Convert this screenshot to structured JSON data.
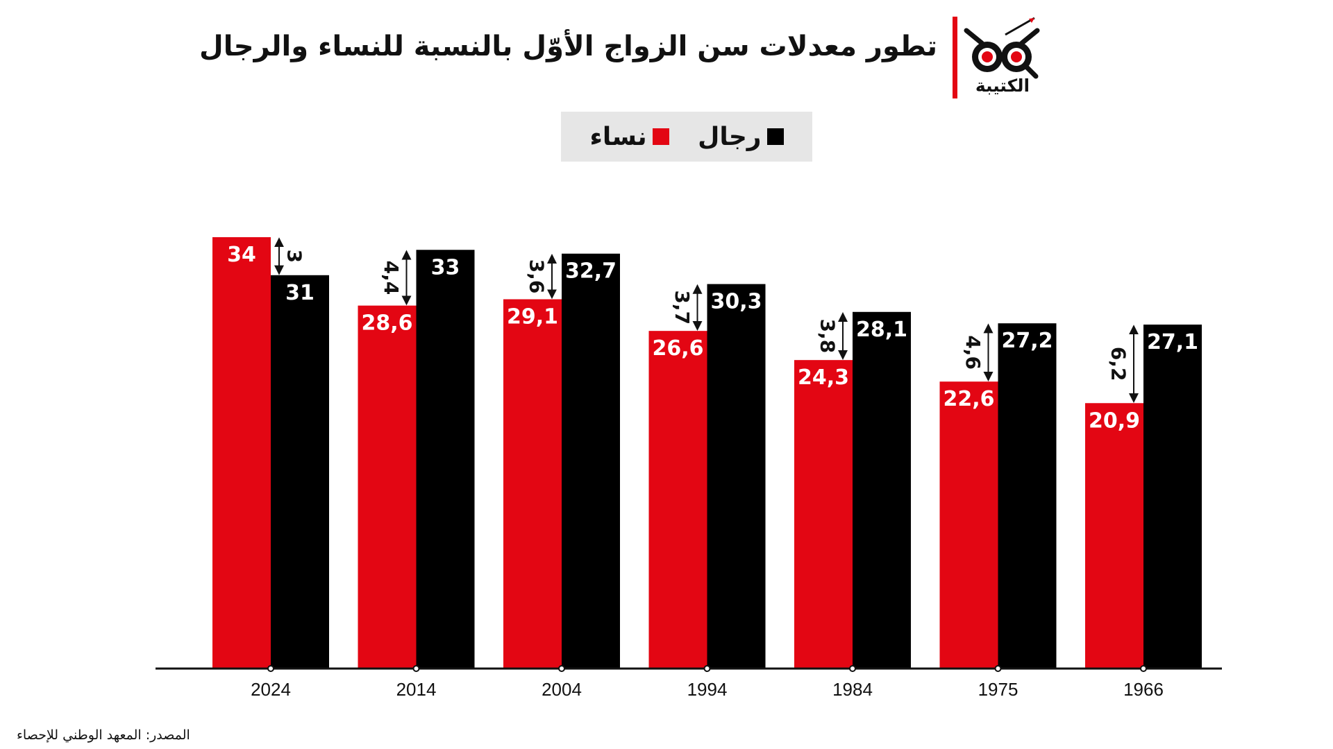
{
  "header": {
    "title": "تطور معدلات سن الزواج الأوّل بالنسبة للنساء والرجال",
    "logo_text": "الكتيبة"
  },
  "legend": {
    "men": "رجال",
    "women": "نساء"
  },
  "source": "المصدر: المعهد الوطني للإحصاء",
  "colors": {
    "women": "#e30613",
    "men": "#000000",
    "legend_bg": "#e6e6e6"
  },
  "chart_data": {
    "type": "bar",
    "categories": [
      "2024",
      "2014",
      "2004",
      "1994",
      "1984",
      "1975",
      "1966"
    ],
    "ylim": [
      0,
      36
    ],
    "series": [
      {
        "name": "نساء",
        "values": [
          34,
          28.6,
          29.1,
          26.6,
          24.3,
          22.6,
          20.9
        ],
        "labels": [
          "34",
          "28,6",
          "29,1",
          "26,6",
          "24,3",
          "22,6",
          "20,9"
        ]
      },
      {
        "name": "رجال",
        "values": [
          31,
          33,
          32.7,
          30.3,
          28.1,
          27.2,
          27.1
        ],
        "labels": [
          "31",
          "33",
          "32,7",
          "30,3",
          "28,1",
          "27,2",
          "27,1"
        ]
      }
    ],
    "gaps": [
      {
        "value": 3,
        "label": "3"
      },
      {
        "value": 4.4,
        "label": "4,4"
      },
      {
        "value": 3.6,
        "label": "3,6"
      },
      {
        "value": 3.7,
        "label": "3,7"
      },
      {
        "value": 3.8,
        "label": "3,8"
      },
      {
        "value": 4.6,
        "label": "4,6"
      },
      {
        "value": 6.2,
        "label": "6,2"
      }
    ],
    "legend_position": "top-center",
    "grid": false
  }
}
